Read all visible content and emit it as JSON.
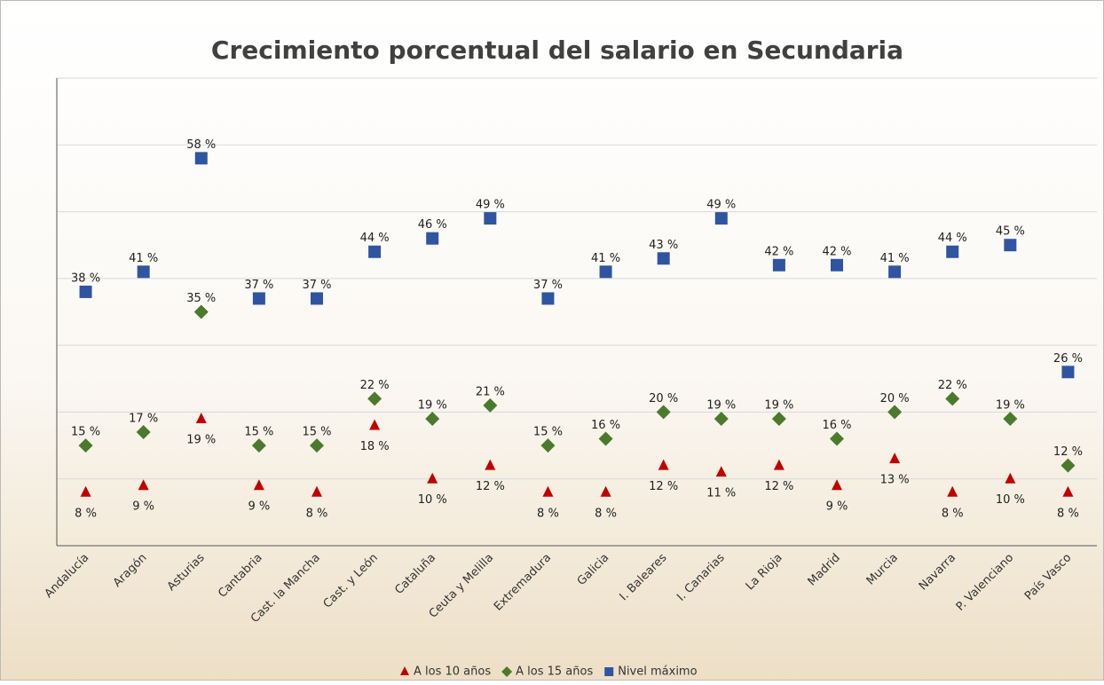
{
  "chart_data": {
    "type": "scatter",
    "title": "Crecimiento porcentual del salario en Secundaria",
    "categories": [
      "Andalucía",
      "Aragón",
      "Asturias",
      "Cantabria",
      "Cast. la Mancha",
      "Cast. y León",
      "Cataluña",
      "Ceuta y Melilla",
      "Extremadura",
      "Galicia",
      "I. Baleares",
      "I. Canarias",
      "La Rioja",
      "Madrid",
      "Murcia",
      "Navarra",
      "P. Valenciano",
      "País Vasco"
    ],
    "series": [
      {
        "name": "A los 10 años",
        "color": "#c00000",
        "marker": "triangle",
        "values": [
          8,
          9,
          19,
          9,
          8,
          18,
          10,
          12,
          8,
          8,
          12,
          11,
          12,
          9,
          13,
          8,
          10,
          8
        ],
        "value_labels": [
          "8 %",
          "9 %",
          "19 %",
          "9 %",
          "8 %",
          "18 %",
          "10 %",
          "12 %",
          "8 %",
          "8 %",
          "12 %",
          "11 %",
          "12 %",
          "9 %",
          "13 %",
          "8 %",
          "10 %",
          "8 %"
        ]
      },
      {
        "name": "A los 15 años",
        "color": "#4a7a2c",
        "marker": "diamond",
        "values": [
          15,
          17,
          35,
          15,
          15,
          22,
          19,
          21,
          15,
          16,
          20,
          19,
          19,
          16,
          20,
          22,
          19,
          12
        ],
        "value_labels": [
          "15 %",
          "17 %",
          "35 %",
          "15 %",
          "15 %",
          "22 %",
          "19 %",
          "21 %",
          "15 %",
          "16 %",
          "20 %",
          "19 %",
          "19 %",
          "16 %",
          "20 %",
          "22 %",
          "19 %",
          "12 %"
        ]
      },
      {
        "name": "Nivel máximo",
        "color": "#2f55a0",
        "marker": "square",
        "values": [
          38,
          41,
          58,
          37,
          37,
          44,
          46,
          49,
          37,
          41,
          43,
          49,
          42,
          42,
          41,
          44,
          45,
          26
        ],
        "value_labels": [
          "38 %",
          "41 %",
          "58 %",
          "37 %",
          "37 %",
          "44 %",
          "46 %",
          "49 %",
          "37 %",
          "41 %",
          "43 %",
          "49 %",
          "42 %",
          "42 %",
          "41 %",
          "44 %",
          "45 %",
          "26 %"
        ]
      }
    ],
    "ylim": [
      0,
      70
    ],
    "yticks": [
      0,
      10,
      20,
      30,
      40,
      50,
      60,
      70
    ],
    "grid": true,
    "legend": "bottom"
  }
}
